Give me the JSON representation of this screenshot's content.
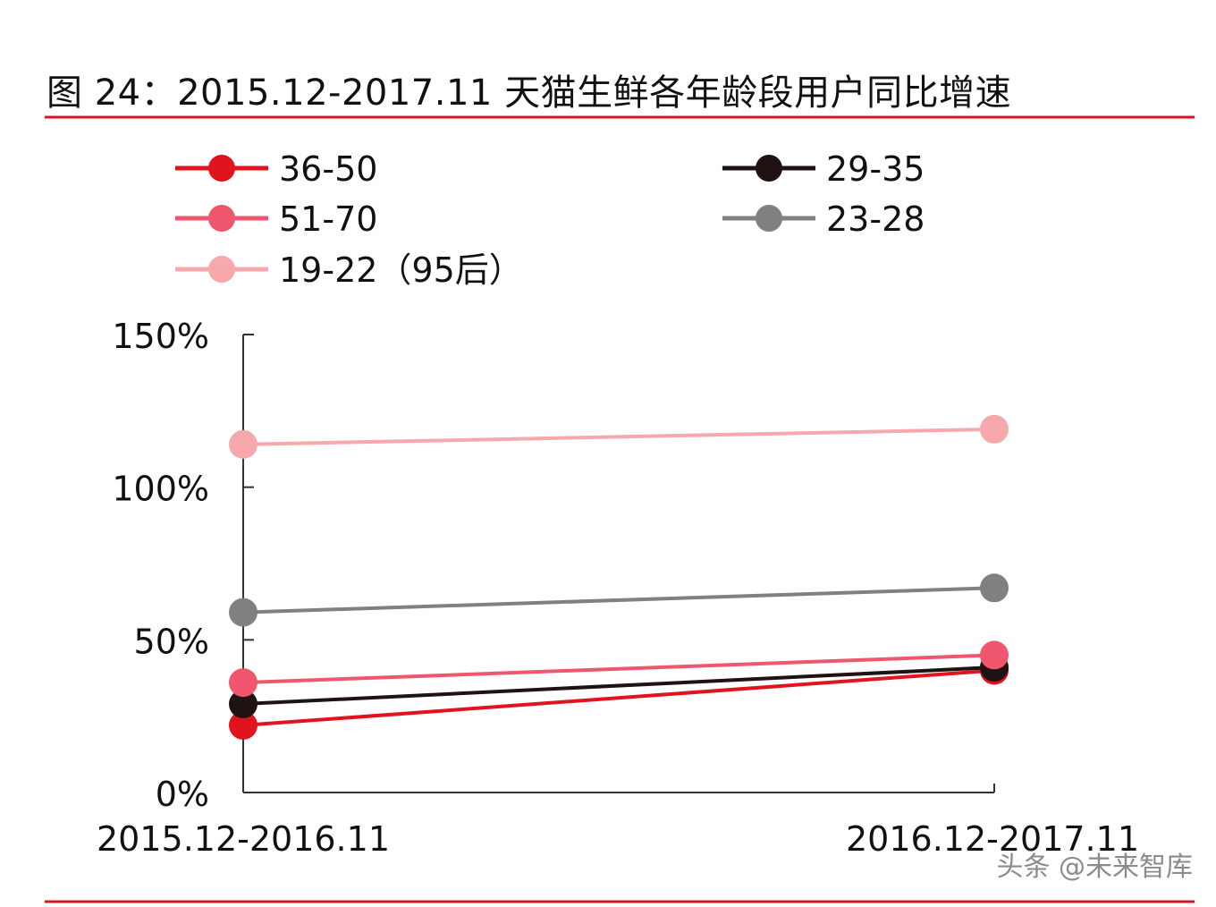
{
  "figure": {
    "title": "图 24：2015.12-2017.11 天猫生鲜各年龄段用户同比增速",
    "rule_color": "#d9141f"
  },
  "watermark": "头条 @未来智库",
  "chart_data": {
    "type": "line",
    "title": "图 24：2015.12-2017.11 天猫生鲜各年龄段用户同比增速",
    "xlabel": "",
    "ylabel": "",
    "categories": [
      "2015.12-2016.11",
      "2016.12-2017.11"
    ],
    "ylim": [
      0,
      150
    ],
    "yticks": [
      0,
      50,
      100,
      150
    ],
    "ytick_labels": [
      "0%",
      "50%",
      "100%",
      "150%"
    ],
    "grid": false,
    "legend_position": "top",
    "series": [
      {
        "name": "36-50",
        "values": [
          22,
          40
        ],
        "color": "#e0141f"
      },
      {
        "name": "29-35",
        "values": [
          29,
          41
        ],
        "color": "#1f1212"
      },
      {
        "name": "51-70",
        "values": [
          36,
          45
        ],
        "color": "#f0566d"
      },
      {
        "name": "23-28",
        "values": [
          59,
          67
        ],
        "color": "#808080"
      },
      {
        "name": "19-22（95后）",
        "values": [
          114,
          119
        ],
        "color": "#f7a8ad"
      }
    ],
    "draw_order": [
      "19-22（95后）",
      "23-28",
      "36-50",
      "29-35",
      "51-70"
    ]
  }
}
